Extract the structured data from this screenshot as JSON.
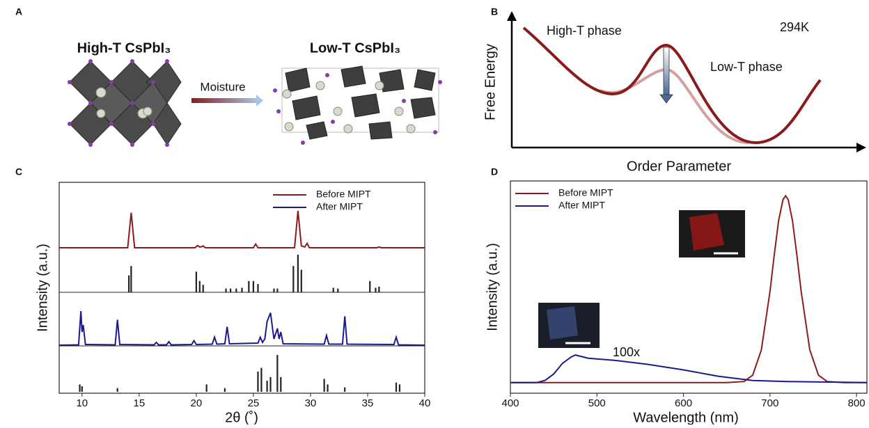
{
  "panels": {
    "a": {
      "label": "A",
      "left_title": "High-T CsPbI₃",
      "right_title": "Low-T CsPbI₃",
      "arrow_label": "Moisture"
    },
    "b": {
      "label": "B",
      "y_label": "Free Energy",
      "x_label": "Order Parameter",
      "high_label": "High-T phase",
      "low_label": "Low-T phase",
      "temperature": "294K"
    },
    "c": {
      "label": "C"
    },
    "d": {
      "label": "D",
      "annotation": "100x"
    }
  },
  "chart_data": [
    {
      "type": "line",
      "x_label": "2θ (˚)",
      "y_label": "Intensity (a.u.)",
      "xlim": [
        8,
        40
      ],
      "xticks": [
        10,
        15,
        20,
        25,
        30,
        35,
        40
      ],
      "ylim": [
        0,
        1
      ],
      "series": [
        {
          "name": "Before MIPT",
          "color": "#8b1a1a",
          "x": [
            8,
            14.0,
            14.3,
            14.6,
            19.9,
            20.1,
            20.3,
            20.5,
            20.6,
            20.8,
            25.0,
            25.2,
            25.4,
            28.6,
            28.9,
            29.2,
            29.5,
            29.7,
            29.9,
            35.8,
            36.0,
            36.2,
            40
          ],
          "values": [
            0,
            0,
            0.95,
            0,
            0,
            0.06,
            0.02,
            0.03,
            0.05,
            0,
            0,
            0.1,
            0,
            0,
            1.0,
            0.05,
            0.02,
            0.12,
            0,
            0,
            0.02,
            0,
            0
          ]
        },
        {
          "name": "After MIPT",
          "color": "#1a1a8c",
          "x": [
            8,
            9.7,
            9.9,
            10.0,
            10.1,
            10.3,
            12.9,
            13.1,
            13.3,
            16.3,
            16.5,
            16.7,
            17.4,
            17.6,
            17.8,
            19.6,
            19.8,
            20.0,
            21.4,
            21.6,
            21.8,
            22.5,
            22.7,
            22.9,
            25.4,
            25.6,
            25.8,
            26.0,
            26.2,
            26.5,
            26.8,
            27.1,
            27.25,
            27.4,
            27.6,
            31.2,
            31.4,
            31.6,
            32.8,
            33.0,
            33.2,
            37.3,
            37.5,
            37.7,
            40
          ],
          "values": [
            0.02,
            0.03,
            1.0,
            0.4,
            0.6,
            0.04,
            0.03,
            0.75,
            0.04,
            0.03,
            0.1,
            0.03,
            0.03,
            0.12,
            0.03,
            0.04,
            0.15,
            0.04,
            0.05,
            0.25,
            0.05,
            0.06,
            0.55,
            0.06,
            0.08,
            0.25,
            0.1,
            0.2,
            0.7,
            0.95,
            0.2,
            0.5,
            0.2,
            0.4,
            0.06,
            0.05,
            0.3,
            0.05,
            0.05,
            0.85,
            0.05,
            0.04,
            0.25,
            0.03,
            0.02
          ]
        }
      ],
      "reference_patterns": [
        {
          "color": "#222222",
          "x": [
            14.1,
            14.3,
            20.0,
            20.3,
            20.6,
            22.6,
            23.0,
            23.5,
            24.0,
            24.6,
            25.0,
            25.4,
            26.8,
            27.1,
            28.5,
            28.9,
            29.2,
            32.0,
            32.4,
            35.2,
            35.7,
            36.0
          ],
          "values": [
            0.45,
            0.7,
            0.55,
            0.3,
            0.2,
            0.1,
            0.1,
            0.1,
            0.12,
            0.3,
            0.3,
            0.22,
            0.1,
            0.1,
            0.7,
            1.0,
            0.6,
            0.12,
            0.1,
            0.3,
            0.12,
            0.15
          ]
        },
        {
          "color": "#222222",
          "x": [
            9.8,
            10.0,
            13.1,
            20.9,
            22.5,
            25.4,
            25.7,
            26.2,
            26.5,
            27.1,
            27.4,
            31.2,
            31.5,
            33.0,
            37.5,
            37.8
          ],
          "values": [
            0.2,
            0.15,
            0.1,
            0.2,
            0.1,
            0.55,
            0.65,
            0.3,
            0.4,
            1.0,
            0.4,
            0.35,
            0.2,
            0.12,
            0.25,
            0.2
          ]
        }
      ]
    },
    {
      "type": "line",
      "x_label": "Wavelength (nm)",
      "y_label": "Intensity (a.u.)",
      "xlim": [
        400,
        812
      ],
      "xticks": [
        400,
        500,
        600,
        700,
        800
      ],
      "ylim": [
        0,
        1
      ],
      "series": [
        {
          "name": "Before MIPT",
          "color": "#8b1a1a",
          "x": [
            400,
            600,
            650,
            670,
            680,
            690,
            700,
            705,
            710,
            715,
            718,
            721,
            726,
            731,
            736,
            746,
            756,
            766,
            786,
            812
          ],
          "values": [
            0.05,
            0.05,
            0.05,
            0.055,
            0.085,
            0.204,
            0.479,
            0.654,
            0.813,
            0.912,
            0.93,
            0.912,
            0.813,
            0.654,
            0.479,
            0.204,
            0.085,
            0.055,
            0.05,
            0.05
          ]
        },
        {
          "name": "After MIPT",
          "color": "#1a1a8c",
          "x": [
            400,
            430,
            440,
            450,
            460,
            470,
            475,
            490,
            520,
            560,
            600,
            640,
            680,
            720,
            812
          ],
          "values": [
            0.05,
            0.05,
            0.06,
            0.09,
            0.14,
            0.17,
            0.18,
            0.165,
            0.155,
            0.135,
            0.11,
            0.08,
            0.06,
            0.055,
            0.05
          ]
        }
      ]
    }
  ]
}
